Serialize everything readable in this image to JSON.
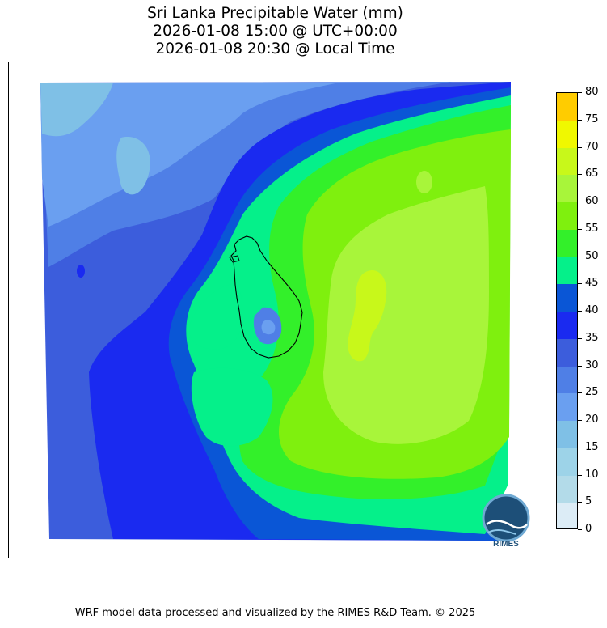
{
  "title": {
    "line1": "Sri Lanka Precipitable Water (mm)",
    "line2": "2026-01-08 15:00 @ UTC+00:00",
    "line3": "2026-01-08 20:30 @ Local Time"
  },
  "colorbar": {
    "ticks": [
      "0",
      "5",
      "10",
      "15",
      "20",
      "25",
      "30",
      "35",
      "40",
      "45",
      "50",
      "55",
      "60",
      "65",
      "70",
      "75",
      "80"
    ],
    "levels": [
      {
        "from": 0,
        "to": 5,
        "color": "#dcecf6"
      },
      {
        "from": 5,
        "to": 10,
        "color": "#b3dbe9"
      },
      {
        "from": 10,
        "to": 15,
        "color": "#9dd3e8"
      },
      {
        "from": 15,
        "to": 20,
        "color": "#7fc0e6"
      },
      {
        "from": 20,
        "to": 25,
        "color": "#6a9ff0"
      },
      {
        "from": 25,
        "to": 30,
        "color": "#4f7fe6"
      },
      {
        "from": 30,
        "to": 35,
        "color": "#3c5ddc"
      },
      {
        "from": 35,
        "to": 40,
        "color": "#1a2af0"
      },
      {
        "from": 40,
        "to": 45,
        "color": "#0a56d6"
      },
      {
        "from": 45,
        "to": 50,
        "color": "#05f08a"
      },
      {
        "from": 50,
        "to": 55,
        "color": "#33f02a"
      },
      {
        "from": 55,
        "to": 60,
        "color": "#7ff00e"
      },
      {
        "from": 60,
        "to": 65,
        "color": "#a8f53a"
      },
      {
        "from": 65,
        "to": 70,
        "color": "#c8f81a"
      },
      {
        "from": 70,
        "to": 75,
        "color": "#f0f800"
      },
      {
        "from": 75,
        "to": 80,
        "color": "#ffcc00"
      }
    ]
  },
  "logo": {
    "text": "RIMES"
  },
  "footer": "WRF model data processed and visualized by the RIMES R&D Team. © 2025"
}
